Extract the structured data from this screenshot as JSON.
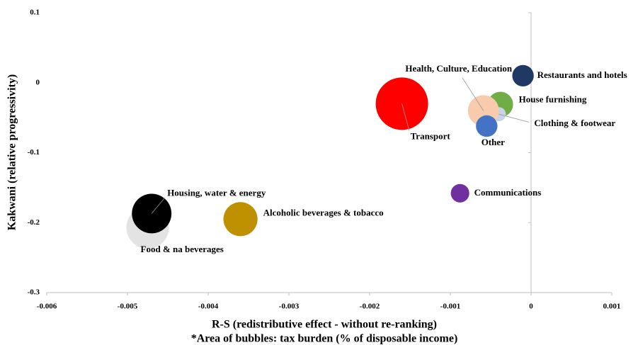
{
  "chart_data": {
    "type": "bubble",
    "x_label": "R-S (redistributive effect - without re-ranking)",
    "note": "*Area of bubbles: tax burden (% of disposable income)",
    "y_label": "Kakwani (relative progressivity)",
    "xlim": [
      -0.006,
      0.001
    ],
    "xticks": [
      -0.006,
      -0.005,
      -0.004,
      -0.003,
      -0.002,
      -0.001,
      0,
      0.001
    ],
    "ylim": [
      -0.3,
      0.1
    ],
    "yticks": [
      -0.3,
      -0.2,
      -0.1,
      0,
      0.1
    ],
    "points": [
      {
        "name": "Food & na beverages",
        "color": "#e3e3e3",
        "x": -0.00475,
        "y": -0.207,
        "size": 9
      },
      {
        "name": "Housing, water & energy",
        "color": "#000000",
        "x": -0.0047,
        "y": -0.187,
        "size": 7.8
      },
      {
        "name": "Alcoholic beverages & tobacco",
        "color": "#bf9000",
        "x": -0.0036,
        "y": -0.195,
        "size": 5.8
      },
      {
        "name": "Transport",
        "color": "#ff0000",
        "x": -0.0016,
        "y": -0.03,
        "size": 13.7
      },
      {
        "name": "Communications",
        "color": "#7030a0",
        "x": -0.00088,
        "y": -0.158,
        "size": 1.7
      },
      {
        "name": "House furnishing",
        "color": "#70ad47",
        "x": -0.00038,
        "y": -0.031,
        "size": 3.2
      },
      {
        "name": "Clothing & footwear",
        "color": "#c9d3e6",
        "x": -0.0004,
        "y": -0.045,
        "size": 1
      },
      {
        "name": "Health, Culture, Education",
        "color": "#f8cbad",
        "x": -0.00059,
        "y": -0.04,
        "size": 4.8
      },
      {
        "name": "Other",
        "color": "#4472c4",
        "x": -0.00055,
        "y": -0.062,
        "size": 2.3
      },
      {
        "name": "Restaurants and hotels",
        "color": "#1f3864",
        "x": -0.0001,
        "y": 0.01,
        "size": 2.3
      }
    ]
  }
}
